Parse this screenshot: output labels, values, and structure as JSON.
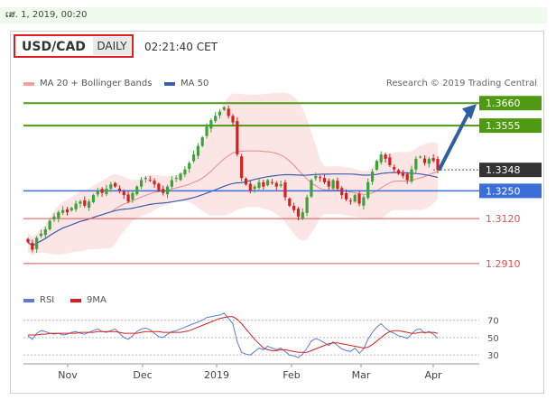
{
  "header": {
    "date": "ເສ. 1, 2019, 00:20",
    "symbol": "USD/CAD",
    "period": "DAILY",
    "time": "02:21:40 CET"
  },
  "legend": {
    "bollinger_label": "MA 20 + Bollinger Bands",
    "ma50_label": "MA 50",
    "rsi_label": "RSI",
    "ma9_label": "9MA"
  },
  "credit": "Research © 2019 Trading Central",
  "colors": {
    "up_candle": "#3aa33a",
    "down_candle": "#d62020",
    "bollinger": "#f6a0a0",
    "ma50": "#3a5fb0",
    "resistance": "#4f9a12",
    "support": "#3a6fd8",
    "level": "#e05050",
    "arrow": "#2e5fa3",
    "current": "#333333"
  },
  "chart_data": [
    {
      "type": "candlestick",
      "x_labels": [
        "Nov",
        "Dec",
        "2019",
        "Feb",
        "Mar",
        "Apr"
      ],
      "ylim": [
        1.28,
        1.372
      ],
      "levels": [
        {
          "value": 1.366,
          "label": "1.3660",
          "kind": "resistance"
        },
        {
          "value": 1.3555,
          "label": "1.3555",
          "kind": "resistance"
        },
        {
          "value": 1.3348,
          "label": "1.3348",
          "kind": "current"
        },
        {
          "value": 1.325,
          "label": "1.3250",
          "kind": "support"
        },
        {
          "value": 1.312,
          "label": "1.3120",
          "kind": "level"
        },
        {
          "value": 1.291,
          "label": "1.2910",
          "kind": "level"
        }
      ],
      "close_path": [
        1.301,
        1.2975,
        1.303,
        1.305,
        1.307,
        1.311,
        1.313,
        1.315,
        1.316,
        1.315,
        1.317,
        1.319,
        1.32,
        1.318,
        1.32,
        1.323,
        1.325,
        1.324,
        1.326,
        1.328,
        1.327,
        1.325,
        1.323,
        1.32,
        1.324,
        1.327,
        1.33,
        1.331,
        1.33,
        1.328,
        1.325,
        1.324,
        1.327,
        1.33,
        1.331,
        1.333,
        1.335,
        1.338,
        1.342,
        1.346,
        1.35,
        1.355,
        1.358,
        1.36,
        1.362,
        1.364,
        1.36,
        1.357,
        1.342,
        1.331,
        1.328,
        1.325,
        1.327,
        1.329,
        1.327,
        1.33,
        1.329,
        1.327,
        1.328,
        1.322,
        1.318,
        1.316,
        1.313,
        1.315,
        1.322,
        1.33,
        1.332,
        1.331,
        1.329,
        1.327,
        1.33,
        1.326,
        1.323,
        1.321,
        1.32,
        1.323,
        1.319,
        1.322,
        1.329,
        1.334,
        1.339,
        1.342,
        1.34,
        1.337,
        1.335,
        1.333,
        1.332,
        1.33,
        1.335,
        1.34,
        1.341,
        1.338,
        1.34,
        1.339,
        1.3348
      ],
      "projection": [
        1.3348,
        1.366
      ]
    },
    {
      "type": "line",
      "series": [
        {
          "name": "RSI"
        },
        {
          "name": "9MA"
        }
      ],
      "y_ticks": [
        70,
        50,
        30
      ],
      "ylim": [
        25,
        80
      ],
      "rsi": [
        52,
        48,
        55,
        58,
        57,
        55,
        54,
        55,
        53,
        54,
        56,
        57,
        55,
        54,
        56,
        58,
        60,
        57,
        56,
        58,
        60,
        55,
        50,
        48,
        52,
        57,
        60,
        61,
        59,
        55,
        51,
        50,
        54,
        57,
        58,
        60,
        62,
        64,
        66,
        68,
        70,
        73,
        74,
        75,
        76,
        78,
        72,
        66,
        45,
        33,
        31,
        30,
        34,
        38,
        36,
        40,
        38,
        36,
        38,
        34,
        30,
        29,
        27,
        31,
        38,
        46,
        49,
        47,
        44,
        41,
        45,
        41,
        37,
        35,
        34,
        38,
        32,
        37,
        48,
        56,
        62,
        66,
        61,
        57,
        55,
        52,
        51,
        49,
        54,
        59,
        60,
        55,
        57,
        54,
        49
      ],
      "ma9": [
        53,
        53,
        53,
        54,
        54,
        55,
        55,
        55,
        55,
        55,
        55,
        55,
        56,
        56,
        56,
        56,
        57,
        57,
        57,
        57,
        57,
        56,
        55,
        55,
        55,
        55,
        56,
        57,
        57,
        57,
        57,
        56,
        56,
        56,
        56,
        56,
        57,
        58,
        60,
        62,
        64,
        66,
        68,
        70,
        72,
        73,
        74,
        74,
        71,
        66,
        60,
        54,
        48,
        43,
        38,
        36,
        35,
        35,
        36,
        36,
        35,
        34,
        33,
        33,
        33,
        35,
        37,
        39,
        41,
        43,
        44,
        44,
        43,
        42,
        41,
        40,
        39,
        38,
        39,
        42,
        46,
        50,
        54,
        57,
        58,
        58,
        57,
        56,
        55,
        55,
        56,
        56,
        56,
        56,
        55
      ]
    }
  ]
}
